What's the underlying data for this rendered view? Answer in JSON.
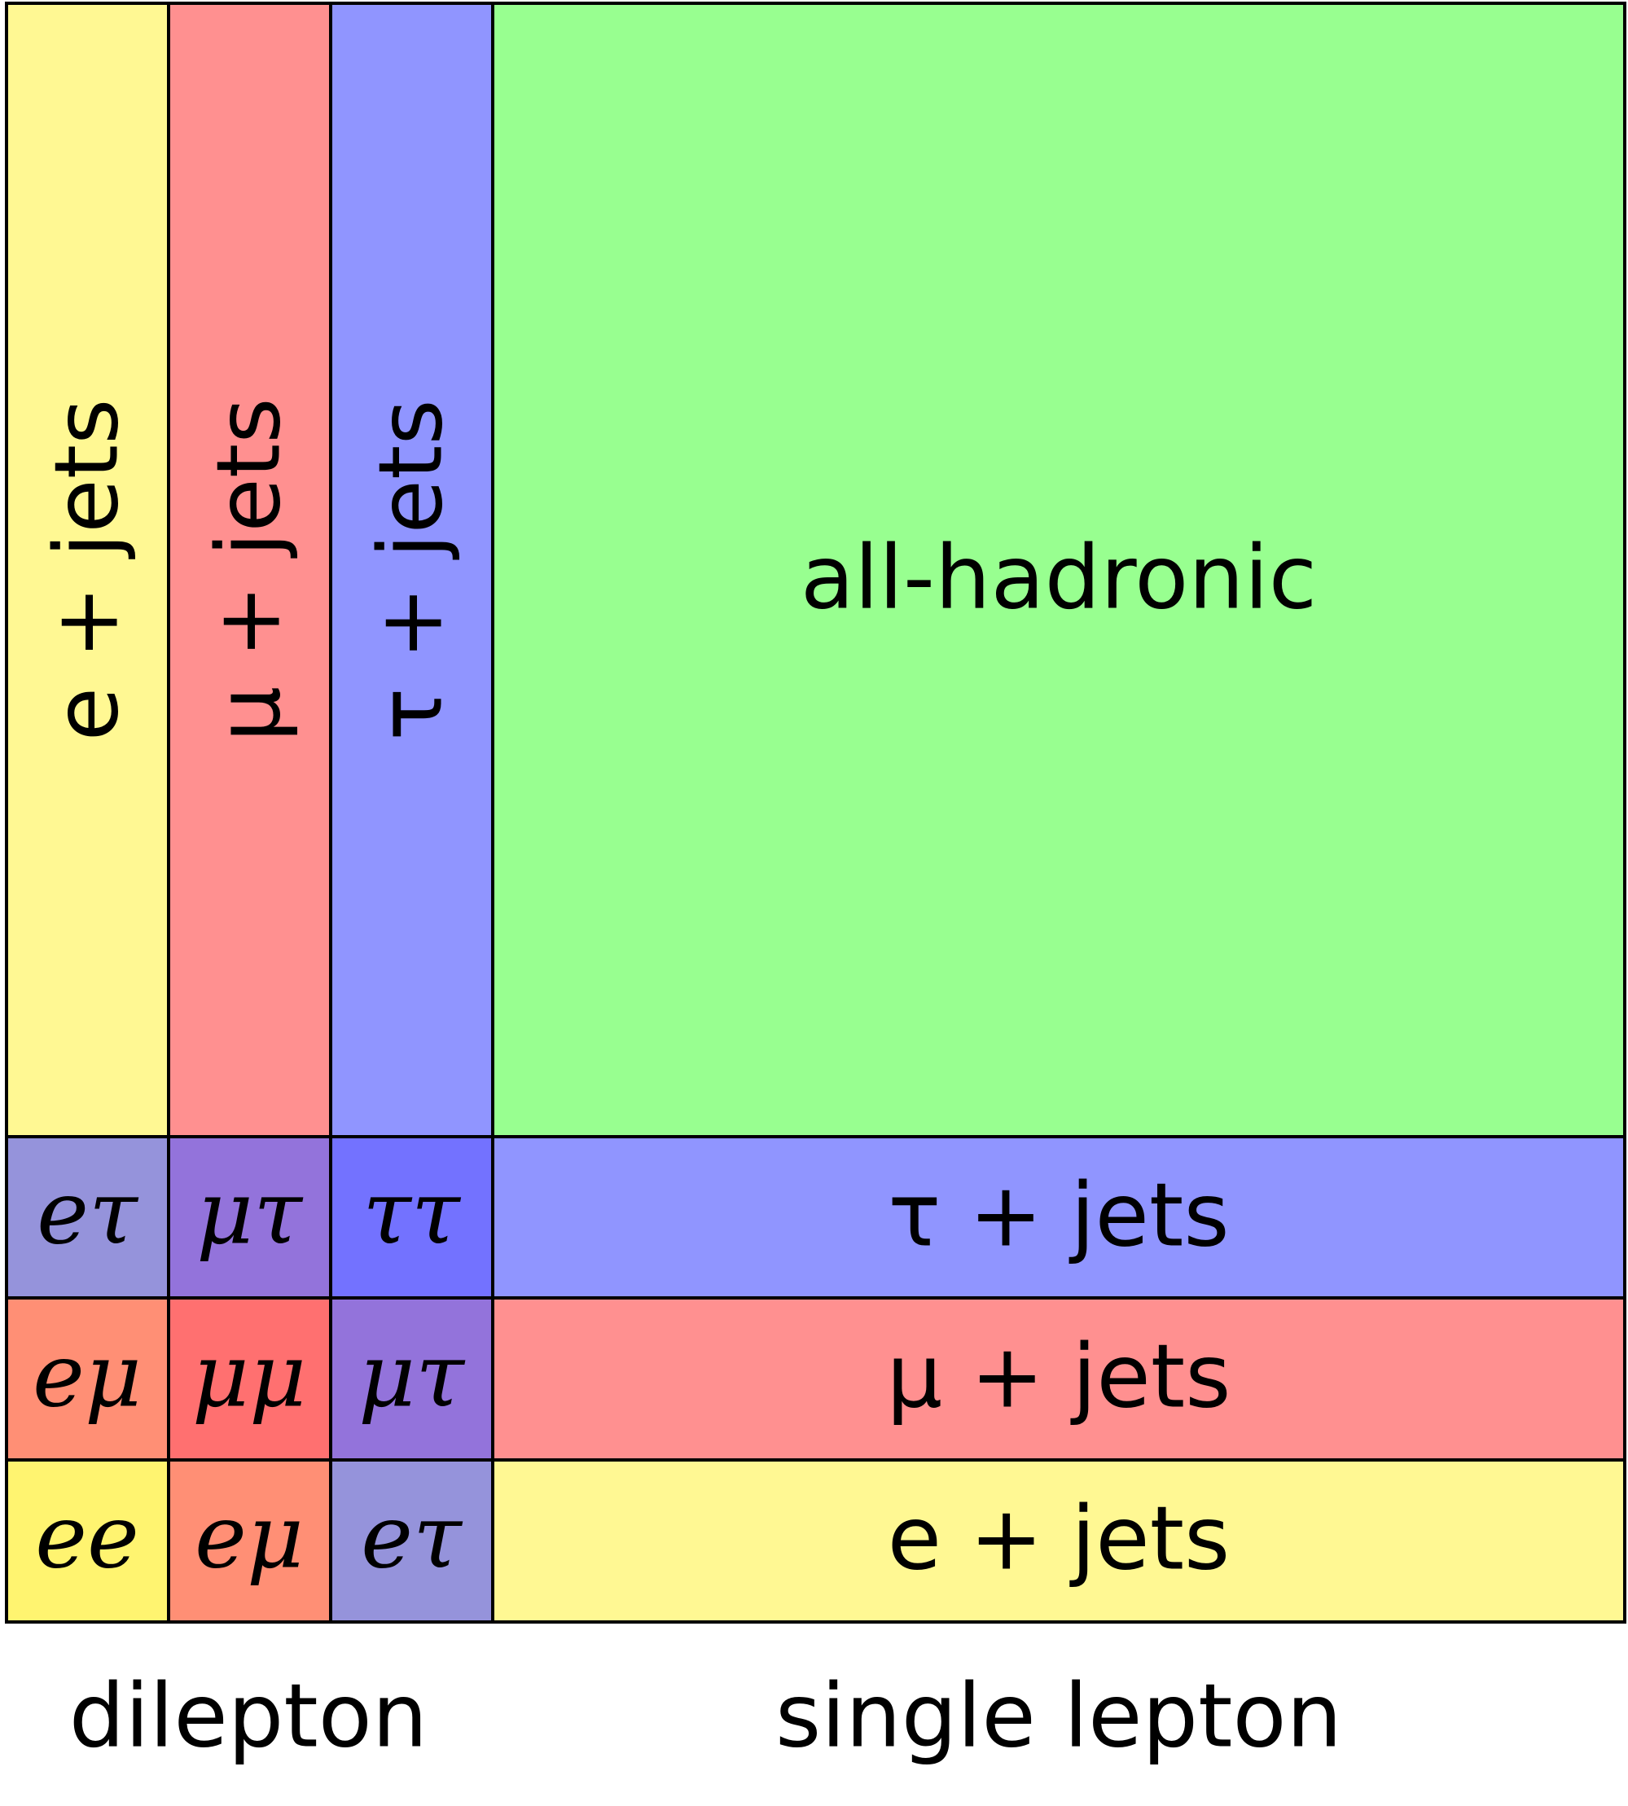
{
  "colors": {
    "yellow": "#fff893",
    "red": "#ff9090",
    "blue": "#9095ff",
    "green": "#98ff90",
    "purple_blue": "#9593db",
    "purple": "#9373db",
    "deep_blue": "#7372ff",
    "orange": "#ff8f75",
    "deep_red": "#ff7070",
    "bright_yellow": "#fff470",
    "border": "#000000"
  },
  "cells": {
    "col_e_jets": "e + jets",
    "col_mu_jets": "μ + jets",
    "col_tau_jets": "τ + jets",
    "all_hadronic": "all-hadronic",
    "row_tau_jets": "τ + jets",
    "row_mu_jets": "μ + jets",
    "row_e_jets": "e + jets",
    "etau_upper": "eτ",
    "mutau_upper": "μτ",
    "tautau": "ττ",
    "emu_left": "eμ",
    "mumu": "μμ",
    "mutau_lower": "μτ",
    "ee": "ee",
    "emu_lower": "eμ",
    "etau_lower": "eτ"
  },
  "labels": {
    "dilepton": "dilepton",
    "single_lepton": "single lepton"
  }
}
